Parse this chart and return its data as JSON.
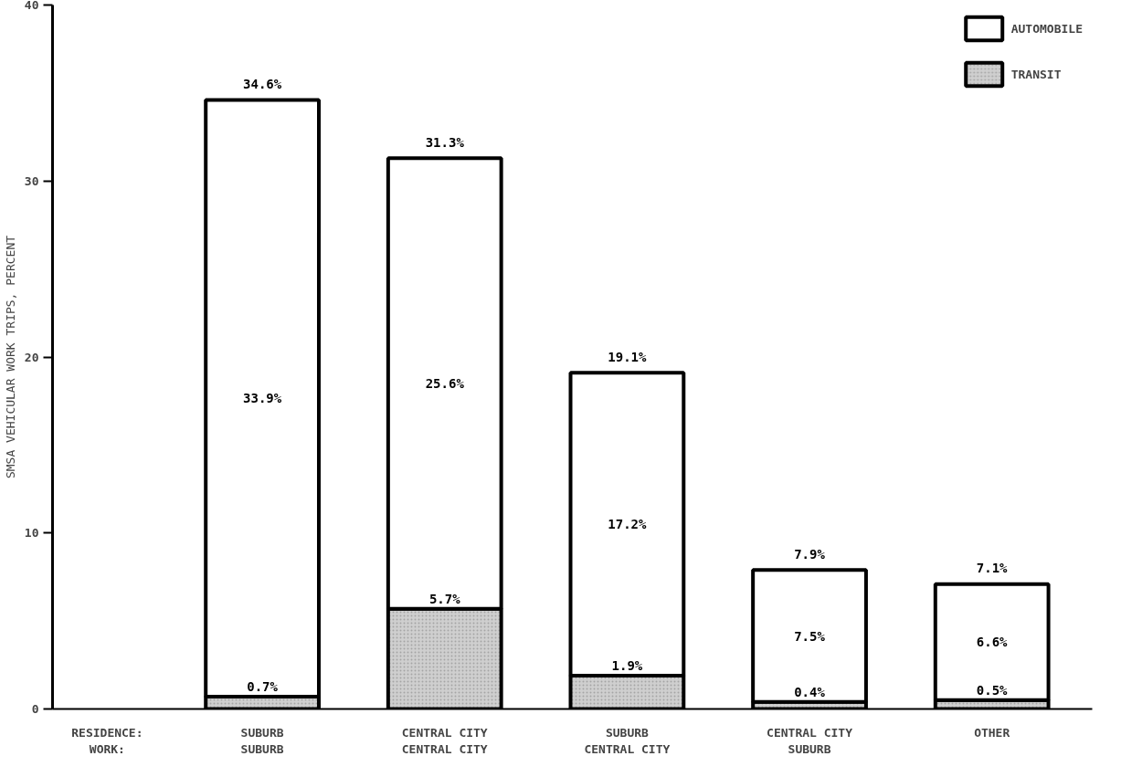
{
  "chart_data": {
    "type": "bar",
    "stacked": true,
    "ylabel": "SMSA VEHICULAR WORK TRIPS, PERCENT",
    "categories": [
      "SUBURB\nSUBURB",
      "CENTRAL CITY\nCENTRAL CITY",
      "SUBURB\nCENTRAL CITY",
      "CENTRAL CITY\nSUBURB",
      "OTHER"
    ],
    "series": [
      {
        "name": "TRANSIT",
        "color": "#cfcfcf",
        "values": [
          0.7,
          5.7,
          1.9,
          0.4,
          0.5
        ],
        "value_labels": [
          "0.7%",
          "5.7%",
          "1.9%",
          "0.4%",
          "0.5%"
        ]
      },
      {
        "name": "AUTOMOBILE",
        "color": "#ffffff",
        "values": [
          33.9,
          25.6,
          17.2,
          7.5,
          6.6
        ],
        "value_labels": [
          "33.9%",
          "25.6%",
          "17.2%",
          "7.5%",
          "6.6%"
        ]
      }
    ],
    "totals": [
      "34.6%",
      "31.3%",
      "19.1%",
      "7.9%",
      "7.1%"
    ],
    "annotations": [
      "RESIDENCE:\nWORK:"
    ],
    "ylim": [
      0,
      40
    ],
    "yticks": [
      0,
      10,
      20,
      30,
      40
    ],
    "grid": false,
    "legend": "top right"
  }
}
